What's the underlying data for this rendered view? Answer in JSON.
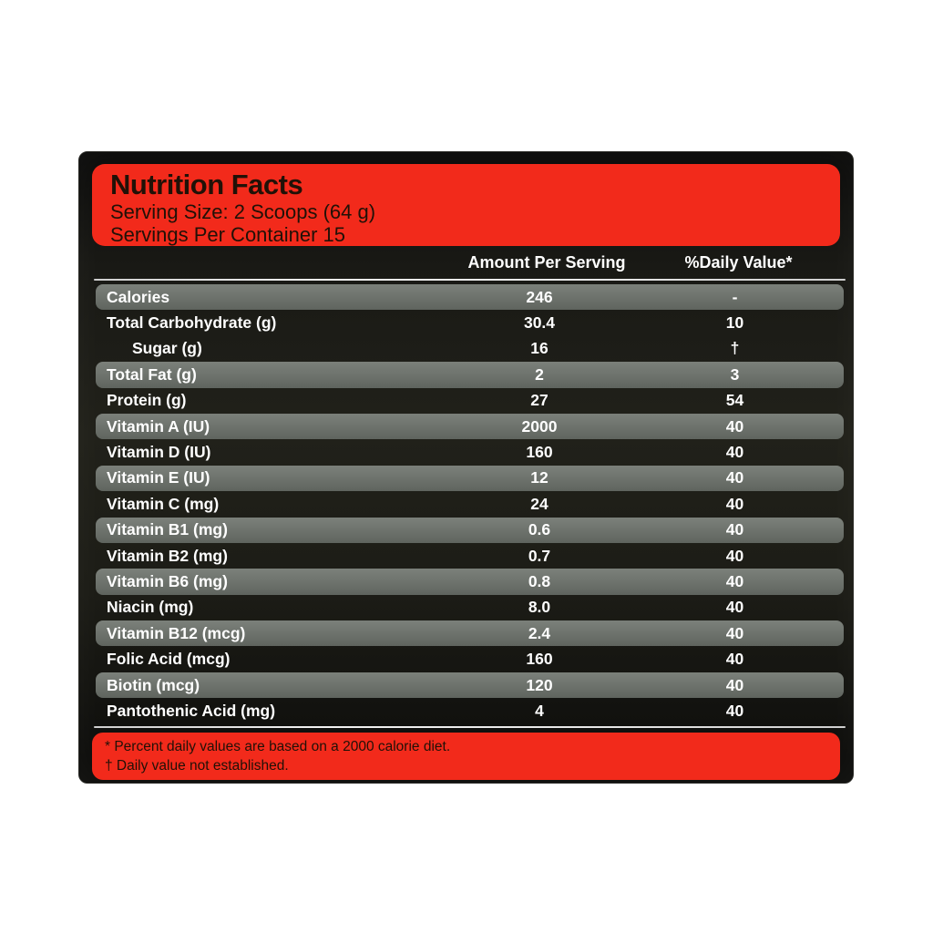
{
  "label": {
    "title": "Nutrition Facts",
    "serving_size": "Serving Size: 2 Scoops (64 g)",
    "servings_per_container": "Servings Per Container 15",
    "columns": {
      "amount": "Amount Per Serving",
      "daily_value": "%Daily Value*"
    },
    "rows": [
      {
        "name": "Calories",
        "amount": "246",
        "dv": "-",
        "shade": "gray",
        "indent": false
      },
      {
        "name": "Total Carbohydrate (g)",
        "amount": "30.4",
        "dv": "10",
        "shade": "dark",
        "indent": false
      },
      {
        "name": "Sugar (g)",
        "amount": "16",
        "dv": "†",
        "shade": "dark",
        "indent": true
      },
      {
        "name": "Total Fat (g)",
        "amount": "2",
        "dv": "3",
        "shade": "gray",
        "indent": false
      },
      {
        "name": "Protein (g)",
        "amount": "27",
        "dv": "54",
        "shade": "dark",
        "indent": false
      },
      {
        "name": "Vitamin A (IU)",
        "amount": "2000",
        "dv": "40",
        "shade": "gray",
        "indent": false
      },
      {
        "name": "Vitamin D (IU)",
        "amount": "160",
        "dv": "40",
        "shade": "dark",
        "indent": false
      },
      {
        "name": "Vitamin E (IU)",
        "amount": "12",
        "dv": "40",
        "shade": "gray",
        "indent": false
      },
      {
        "name": "Vitamin C (mg)",
        "amount": "24",
        "dv": "40",
        "shade": "dark",
        "indent": false
      },
      {
        "name": "Vitamin B1 (mg)",
        "amount": "0.6",
        "dv": "40",
        "shade": "gray",
        "indent": false
      },
      {
        "name": "Vitamin B2 (mg)",
        "amount": "0.7",
        "dv": "40",
        "shade": "dark",
        "indent": false
      },
      {
        "name": "Vitamin B6 (mg)",
        "amount": "0.8",
        "dv": "40",
        "shade": "gray",
        "indent": false
      },
      {
        "name": "Niacin (mg)",
        "amount": "8.0",
        "dv": "40",
        "shade": "dark",
        "indent": false
      },
      {
        "name": "Vitamin B12 (mcg)",
        "amount": "2.4",
        "dv": "40",
        "shade": "gray",
        "indent": false
      },
      {
        "name": "Folic Acid (mcg)",
        "amount": "160",
        "dv": "40",
        "shade": "dark",
        "indent": false
      },
      {
        "name": "Biotin (mcg)",
        "amount": "120",
        "dv": "40",
        "shade": "gray",
        "indent": false
      },
      {
        "name": "Pantothenic Acid (mg)",
        "amount": "4",
        "dv": "40",
        "shade": "dark",
        "indent": false
      }
    ],
    "footnotes": [
      "* Percent daily values are based on a 2000 calorie diet.",
      "† Daily value not established."
    ],
    "colors": {
      "accent_red": "#f22a1b",
      "label_background": "#181813",
      "gray_row": "#6e736d",
      "text_on_red": "#211107",
      "row_text": "#ffffff"
    }
  }
}
